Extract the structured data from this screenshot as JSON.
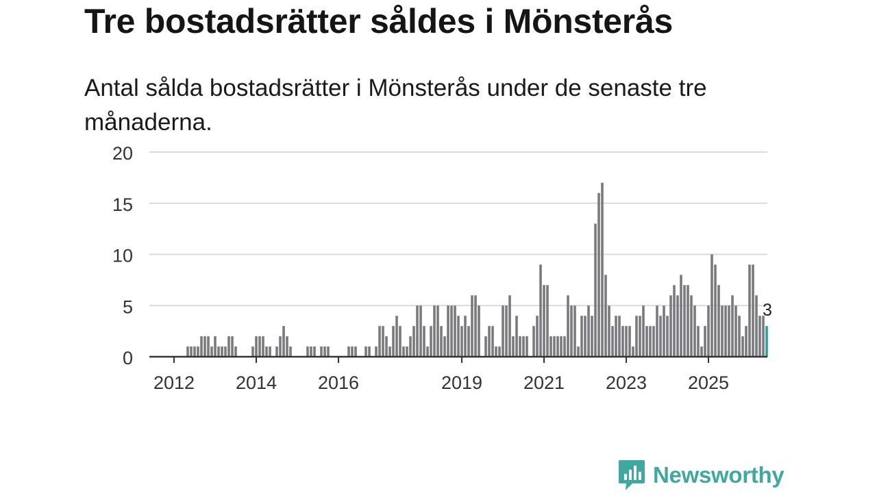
{
  "title": "Tre bostadsrätter såldes i Mönsterås",
  "subtitle": "Antal sålda bostadsrätter i Mönsterås under de senaste tre månaderna.",
  "brand": {
    "name": "Newsworthy",
    "icon": "newsworthy-logo-icon"
  },
  "colors": {
    "bar": "#7a7a7e",
    "highlight": "#2aa39b",
    "grid": "#d9d9d9",
    "axis": "#333333",
    "brand": "#3fa8a0"
  },
  "chart_data": {
    "type": "bar",
    "title": "Tre bostadsrätter såldes i Mönsterås",
    "subtitle": "Antal sålda bostadsrätter i Mönsterås under de senaste tre månaderna.",
    "xlabel": "",
    "ylabel": "",
    "ylim": [
      0,
      20
    ],
    "yticks": [
      "0",
      "5",
      "10",
      "15",
      "20"
    ],
    "xticks": [
      "2012",
      "2014",
      "2016",
      "2019",
      "2021",
      "2023",
      "2025"
    ],
    "grid": true,
    "start_month": "2011-07",
    "granularity": "month",
    "values": [
      0,
      0,
      0,
      0,
      0,
      0,
      0,
      0,
      0,
      0,
      1,
      1,
      1,
      1,
      2,
      2,
      2,
      1,
      2,
      1,
      1,
      1,
      2,
      2,
      1,
      0,
      0,
      0,
      0,
      1,
      2,
      2,
      2,
      1,
      1,
      0,
      1,
      2,
      3,
      2,
      1,
      0,
      0,
      0,
      0,
      1,
      1,
      1,
      0,
      1,
      1,
      1,
      0,
      0,
      0,
      0,
      0,
      1,
      1,
      1,
      0,
      0,
      1,
      1,
      0,
      1,
      3,
      3,
      2,
      1,
      3,
      4,
      3,
      1,
      1,
      2,
      3,
      5,
      5,
      3,
      1,
      3,
      5,
      5,
      3,
      2,
      5,
      5,
      5,
      4,
      3,
      4,
      3,
      6,
      6,
      5,
      0,
      2,
      3,
      3,
      1,
      1,
      5,
      5,
      6,
      2,
      4,
      2,
      2,
      2,
      0,
      3,
      4,
      9,
      7,
      7,
      2,
      2,
      2,
      2,
      2,
      6,
      5,
      5,
      1,
      4,
      4,
      5,
      4,
      13,
      16,
      17,
      8,
      5,
      3,
      4,
      4,
      3,
      3,
      3,
      1,
      4,
      4,
      5,
      3,
      3,
      3,
      5,
      4,
      5,
      4,
      6,
      7,
      6,
      8,
      7,
      7,
      6,
      5,
      3,
      1,
      3,
      5,
      10,
      9,
      7,
      5,
      5,
      5,
      6,
      5,
      4,
      2,
      3,
      9,
      9,
      6,
      4,
      4,
      3
    ],
    "highlight_last": true,
    "last_label": "3"
  }
}
